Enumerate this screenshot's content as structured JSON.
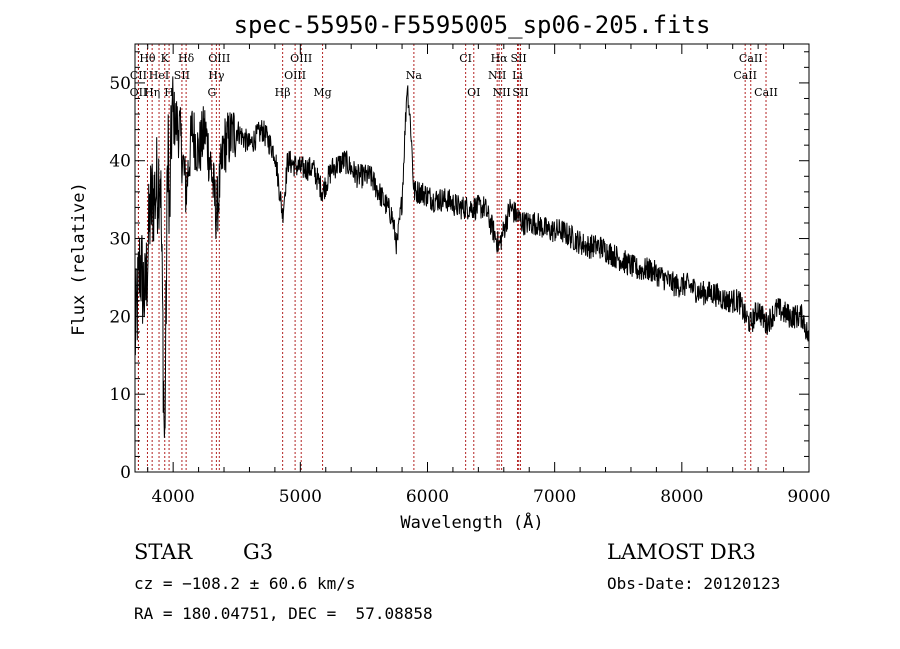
{
  "chart_data": {
    "type": "line",
    "title": "spec-55950-F5595005_sp06-205.fits",
    "xlabel": "Wavelength (Å)",
    "ylabel": "Flux (relative)",
    "xlim": [
      3700,
      9000
    ],
    "ylim": [
      0,
      55
    ],
    "x_ticks": [
      4000,
      5000,
      6000,
      7000,
      8000,
      9000
    ],
    "y_ticks": [
      0,
      10,
      20,
      30,
      40,
      50
    ],
    "series": [
      {
        "name": "flux",
        "anchors": [
          [
            3700,
            17
          ],
          [
            3740,
            27
          ],
          [
            3780,
            22
          ],
          [
            3820,
            34
          ],
          [
            3860,
            36
          ],
          [
            3900,
            39
          ],
          [
            3933,
            2
          ],
          [
            3960,
            46
          ],
          [
            3968,
            30
          ],
          [
            3990,
            46
          ],
          [
            4050,
            44
          ],
          [
            4101,
            36
          ],
          [
            4150,
            44
          ],
          [
            4200,
            41
          ],
          [
            4250,
            44
          ],
          [
            4300,
            39
          ],
          [
            4340,
            33
          ],
          [
            4400,
            42
          ],
          [
            4500,
            44
          ],
          [
            4600,
            42
          ],
          [
            4700,
            44
          ],
          [
            4800,
            41
          ],
          [
            4861,
            33
          ],
          [
            4900,
            40
          ],
          [
            5000,
            39
          ],
          [
            5100,
            39
          ],
          [
            5175,
            36
          ],
          [
            5250,
            39
          ],
          [
            5350,
            40
          ],
          [
            5450,
            38
          ],
          [
            5550,
            38
          ],
          [
            5650,
            35
          ],
          [
            5720,
            33
          ],
          [
            5760,
            29
          ],
          [
            5800,
            35
          ],
          [
            5840,
            50
          ],
          [
            5870,
            44
          ],
          [
            5893,
            36
          ],
          [
            5950,
            36
          ],
          [
            6050,
            35
          ],
          [
            6150,
            35
          ],
          [
            6250,
            34
          ],
          [
            6350,
            34
          ],
          [
            6450,
            34
          ],
          [
            6563,
            29
          ],
          [
            6650,
            34
          ],
          [
            6750,
            32
          ],
          [
            6850,
            32
          ],
          [
            6950,
            31
          ],
          [
            7050,
            31
          ],
          [
            7150,
            30
          ],
          [
            7250,
            29
          ],
          [
            7350,
            29
          ],
          [
            7450,
            28
          ],
          [
            7550,
            27
          ],
          [
            7650,
            26
          ],
          [
            7750,
            26
          ],
          [
            7850,
            25
          ],
          [
            7950,
            24
          ],
          [
            8050,
            24
          ],
          [
            8150,
            23
          ],
          [
            8250,
            23
          ],
          [
            8350,
            22
          ],
          [
            8450,
            22
          ],
          [
            8498,
            20
          ],
          [
            8542,
            19
          ],
          [
            8600,
            21
          ],
          [
            8662,
            19
          ],
          [
            8750,
            21
          ],
          [
            8850,
            20
          ],
          [
            8950,
            20
          ],
          [
            9000,
            17
          ]
        ]
      }
    ],
    "spectral_lines": [
      {
        "label": "Hθ",
        "wavelength": 3798,
        "row": 0
      },
      {
        "label": "K",
        "wavelength": 3934,
        "row": 0
      },
      {
        "label": "Hδ",
        "wavelength": 4102,
        "row": 0
      },
      {
        "label": "OIII",
        "wavelength": 4363,
        "row": 0
      },
      {
        "label": "OIII",
        "wavelength": 5007,
        "row": 0
      },
      {
        "label": "CI",
        "wavelength": 6300,
        "row": 0
      },
      {
        "label": "Hα",
        "wavelength": 6563,
        "row": 0
      },
      {
        "label": "SII",
        "wavelength": 6717,
        "row": 0
      },
      {
        "label": "CaII",
        "wavelength": 8542,
        "row": 0
      },
      {
        "label": "CII",
        "wavelength": 3727,
        "row": 1
      },
      {
        "label": "HeI",
        "wavelength": 3889,
        "row": 1
      },
      {
        "label": "SII",
        "wavelength": 4069,
        "row": 1
      },
      {
        "label": "Hγ",
        "wavelength": 4340,
        "row": 1
      },
      {
        "label": "OIII",
        "wavelength": 4959,
        "row": 1
      },
      {
        "label": "Na",
        "wavelength": 5893,
        "row": 1
      },
      {
        "label": "NII",
        "wavelength": 6548,
        "row": 1
      },
      {
        "label": "Li",
        "wavelength": 6708,
        "row": 1
      },
      {
        "label": "CaII",
        "wavelength": 8498,
        "row": 1
      },
      {
        "label": "OII",
        "wavelength": 3727,
        "row": 2
      },
      {
        "label": "Hη",
        "wavelength": 3835,
        "row": 2
      },
      {
        "label": "H",
        "wavelength": 3968,
        "row": 2
      },
      {
        "label": "G",
        "wavelength": 4305,
        "row": 2
      },
      {
        "label": "Hβ",
        "wavelength": 4861,
        "row": 2
      },
      {
        "label": "Mg",
        "wavelength": 5175,
        "row": 2
      },
      {
        "label": "OI",
        "wavelength": 6364,
        "row": 2
      },
      {
        "label": "NII",
        "wavelength": 6583,
        "row": 2
      },
      {
        "label": "SII",
        "wavelength": 6731,
        "row": 2
      },
      {
        "label": "CaII",
        "wavelength": 8662,
        "row": 2
      }
    ]
  },
  "info": {
    "object_type": "STAR",
    "subclass": "G3",
    "survey": "LAMOST DR3",
    "redshift": "cz = −108.2 ± 60.6 km/s",
    "obs_date": "Obs-Date: 20120123",
    "coords": "RA = 180.04751, DEC =  57.08858"
  },
  "colors": {
    "line_marker": "#b22222",
    "spectrum": "#000000",
    "axis": "#000000"
  }
}
